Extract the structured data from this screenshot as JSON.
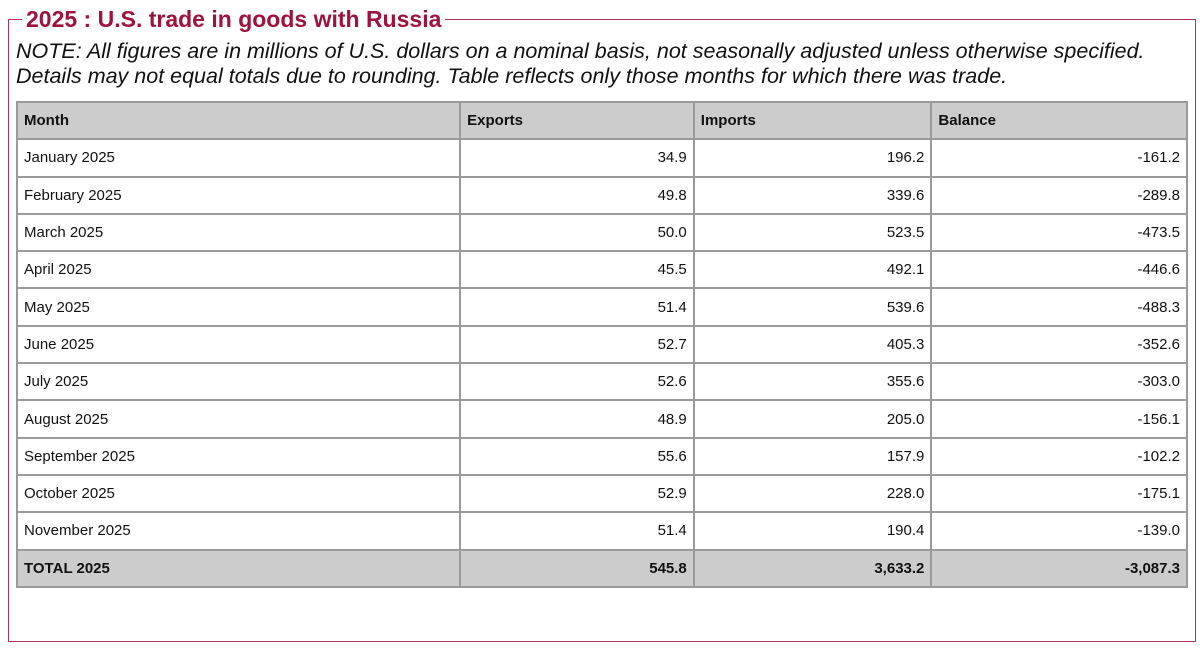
{
  "header": {
    "title": "2025 : U.S. trade in goods with Russia",
    "note": [
      "NOTE: All figures are in millions of U.S. dollars on a nominal basis, not seasonally adjusted unless otherwise specified.",
      "Details may not equal totals due to rounding. Table reflects only those months for which there was trade."
    ]
  },
  "table": {
    "columns": [
      "Month",
      "Exports",
      "Imports",
      "Balance"
    ],
    "rows": [
      [
        "January 2025",
        "34.9",
        "196.2",
        "-161.2"
      ],
      [
        "February 2025",
        "49.8",
        "339.6",
        "-289.8"
      ],
      [
        "March 2025",
        "50.0",
        "523.5",
        "-473.5"
      ],
      [
        "April 2025",
        "45.5",
        "492.1",
        "-446.6"
      ],
      [
        "May 2025",
        "51.4",
        "539.6",
        "-488.3"
      ],
      [
        "June 2025",
        "52.7",
        "405.3",
        "-352.6"
      ],
      [
        "July 2025",
        "52.6",
        "355.6",
        "-303.0"
      ],
      [
        "August 2025",
        "48.9",
        "205.0",
        "-156.1"
      ],
      [
        "September 2025",
        "55.6",
        "157.9",
        "-102.2"
      ],
      [
        "October 2025",
        "52.9",
        "228.0",
        "-175.1"
      ],
      [
        "November 2025",
        "51.4",
        "190.4",
        "-139.0"
      ]
    ],
    "total": [
      "TOTAL 2025",
      "545.8",
      "3,633.2",
      "-3,087.3"
    ]
  }
}
